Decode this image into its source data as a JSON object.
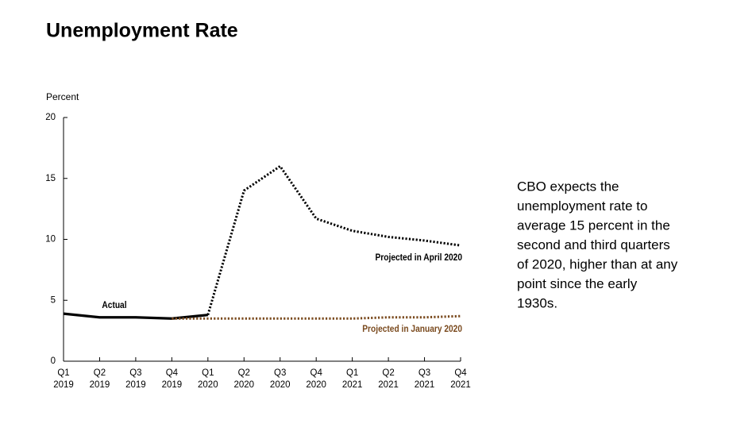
{
  "chart_data": {
    "type": "line",
    "title": "Unemployment Rate",
    "ylabel": "Percent",
    "categories": [
      [
        "Q1",
        "2019"
      ],
      [
        "Q2",
        "2019"
      ],
      [
        "Q3",
        "2019"
      ],
      [
        "Q4",
        "2019"
      ],
      [
        "Q1",
        "2020"
      ],
      [
        "Q2",
        "2020"
      ],
      [
        "Q3",
        "2020"
      ],
      [
        "Q4",
        "2020"
      ],
      [
        "Q1",
        "2021"
      ],
      [
        "Q2",
        "2021"
      ],
      [
        "Q3",
        "2021"
      ],
      [
        "Q4",
        "2021"
      ]
    ],
    "series": [
      {
        "name": "Actual",
        "color": "#000000",
        "style": "solid",
        "values": [
          3.9,
          3.6,
          3.6,
          3.5,
          3.8,
          null,
          null,
          null,
          null,
          null,
          null,
          null
        ]
      },
      {
        "name": "Projected in April 2020",
        "color": "#000000",
        "style": "dotted",
        "values": [
          null,
          null,
          null,
          null,
          3.8,
          14.0,
          16.0,
          11.7,
          10.7,
          10.2,
          9.9,
          9.5
        ]
      },
      {
        "name": "Projected in January 2020",
        "color": "#7a4a1e",
        "style": "dotted",
        "values": [
          null,
          null,
          null,
          3.5,
          3.5,
          3.5,
          3.5,
          3.5,
          3.5,
          3.6,
          3.6,
          3.7
        ]
      }
    ],
    "ylim": [
      0,
      20
    ],
    "yticks": [
      0,
      5,
      10,
      15,
      20
    ],
    "annotation": [
      "CBO expects the",
      "unemployment rate to",
      "average 15 percent in the",
      "second and third quarters",
      "of 2020, higher than at any",
      "point since the early",
      "1930s."
    ]
  }
}
